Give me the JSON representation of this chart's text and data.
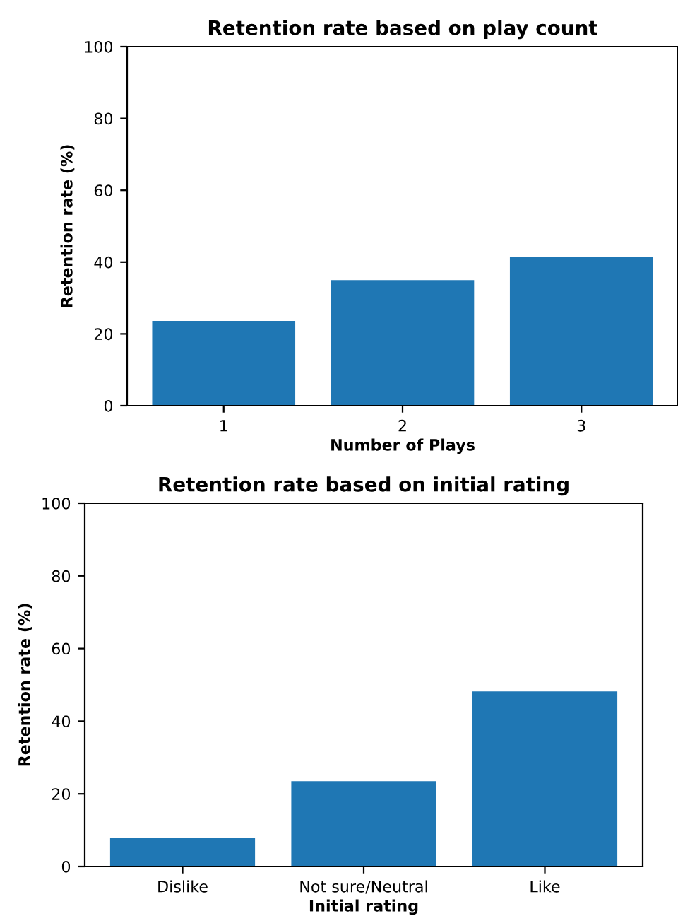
{
  "chart_data": [
    {
      "type": "bar",
      "title": "Retention rate based on play count",
      "xlabel": "Number of Plays",
      "ylabel": "Retention rate (%)",
      "categories": [
        "1",
        "2",
        "3"
      ],
      "values": [
        23.6,
        35,
        41.5
      ],
      "color": "#1f77b4",
      "ylim": [
        0,
        100
      ],
      "yticks": [
        0,
        20,
        40,
        60,
        80,
        100
      ],
      "grid": false
    },
    {
      "type": "bar",
      "title": "Retention rate based on initial rating",
      "xlabel": "Initial rating",
      "ylabel": "Retention rate (%)",
      "categories": [
        "Dislike",
        "Not sure/Neutral",
        "Like"
      ],
      "values": [
        7.8,
        23.5,
        48.2
      ],
      "color": "#1f77b4",
      "ylim": [
        0,
        100
      ],
      "yticks": [
        0,
        20,
        40,
        60,
        80,
        100
      ],
      "grid": false
    }
  ]
}
